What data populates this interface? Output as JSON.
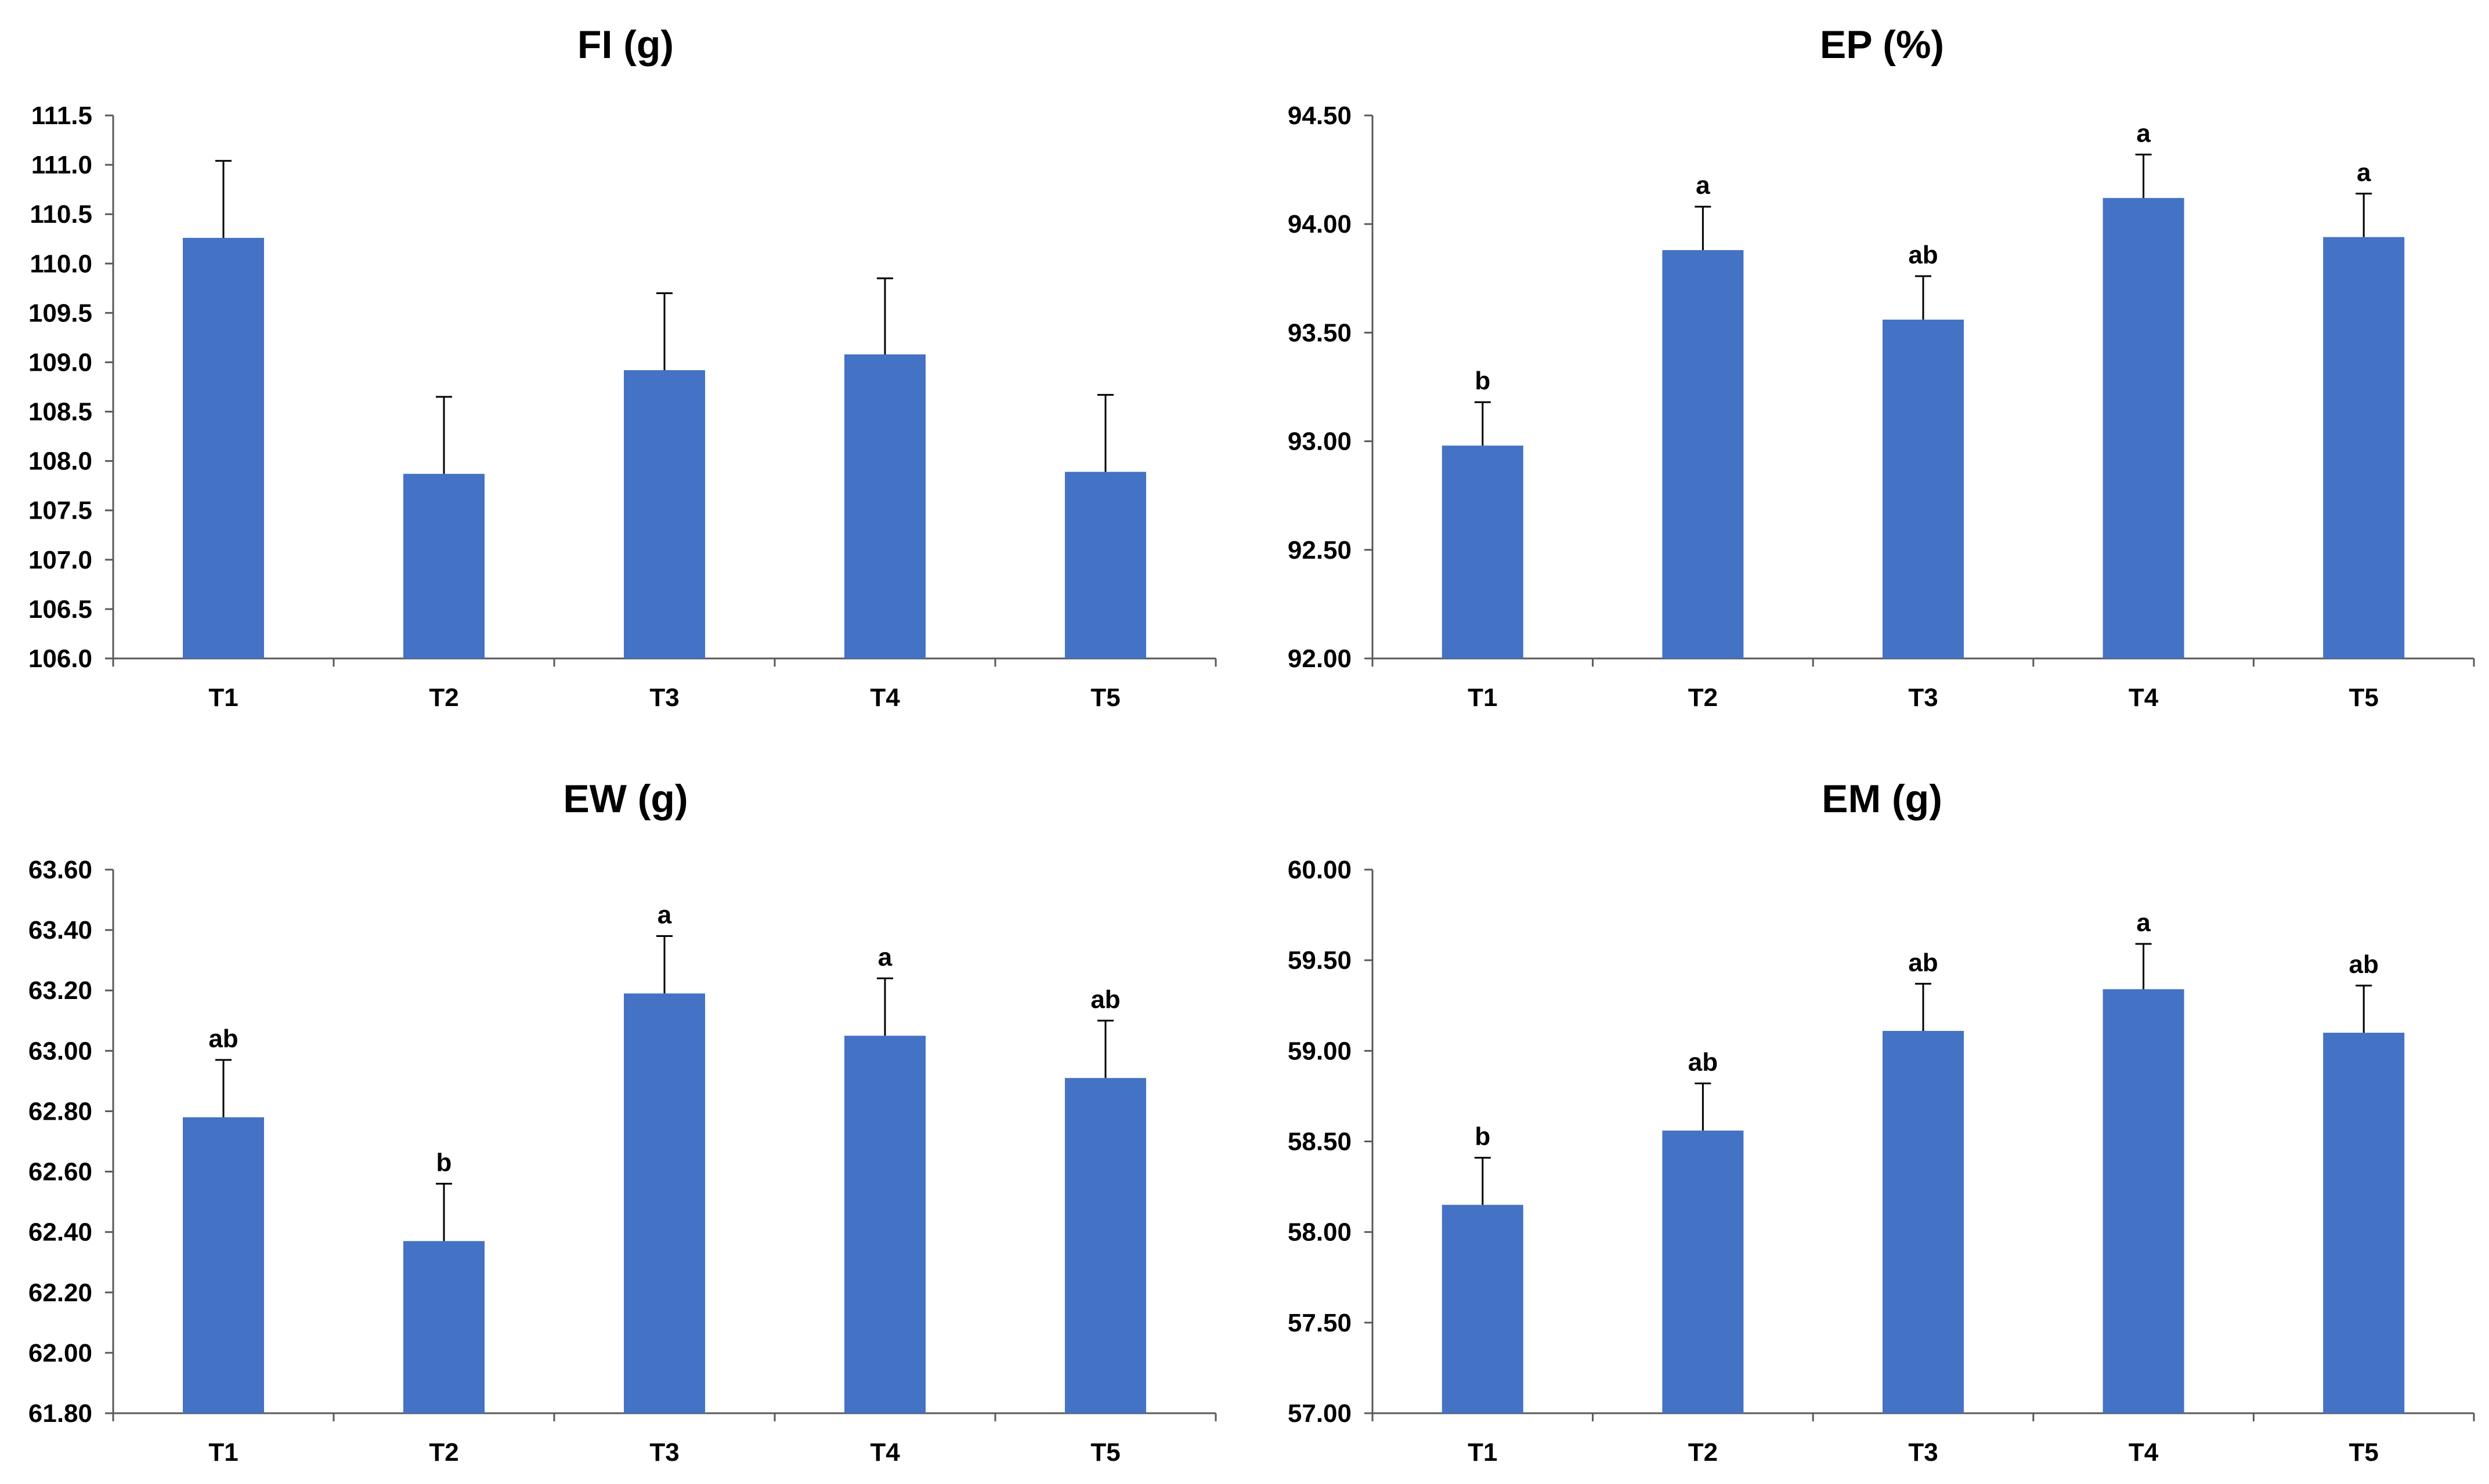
{
  "colors": {
    "bar": "#4472C4",
    "axis": "#595959",
    "error_bar": "#000000",
    "text": "#000000"
  },
  "chart_data": [
    {
      "type": "bar",
      "title": "FI (g)",
      "xlabel": "",
      "ylabel": "",
      "categories": [
        "T1",
        "T2",
        "T3",
        "T4",
        "T5"
      ],
      "values": [
        110.26,
        107.87,
        108.92,
        109.08,
        107.89
      ],
      "error": [
        0.78,
        0.78,
        0.78,
        0.77,
        0.78
      ],
      "letters": [
        "",
        "",
        "",
        "",
        ""
      ],
      "ylim": [
        106.0,
        111.5
      ],
      "yticks": [
        "106.0",
        "106.5",
        "107.0",
        "107.5",
        "108.0",
        "108.5",
        "109.0",
        "109.5",
        "110.0",
        "110.5",
        "111.0",
        "111.5"
      ],
      "grid": false
    },
    {
      "type": "bar",
      "title": "EP (%)",
      "xlabel": "",
      "ylabel": "",
      "categories": [
        "T1",
        "T2",
        "T3",
        "T4",
        "T5"
      ],
      "values": [
        92.98,
        93.88,
        93.56,
        94.12,
        93.94
      ],
      "error": [
        0.2,
        0.2,
        0.2,
        0.2,
        0.2
      ],
      "letters": [
        "b",
        "a",
        "ab",
        "a",
        "a"
      ],
      "ylim": [
        92.0,
        94.5
      ],
      "yticks": [
        "92.00",
        "92.50",
        "93.00",
        "93.50",
        "94.00",
        "94.50"
      ],
      "grid": false
    },
    {
      "type": "bar",
      "title": "EW (g)",
      "xlabel": "",
      "ylabel": "",
      "categories": [
        "T1",
        "T2",
        "T3",
        "T4",
        "T5"
      ],
      "values": [
        62.78,
        62.37,
        63.19,
        63.05,
        62.91
      ],
      "error": [
        0.19,
        0.19,
        0.19,
        0.19,
        0.19
      ],
      "letters": [
        "ab",
        "b",
        "a",
        "a",
        "ab"
      ],
      "ylim": [
        61.8,
        63.6
      ],
      "yticks": [
        "61.80",
        "62.00",
        "62.20",
        "62.40",
        "62.60",
        "62.80",
        "63.00",
        "63.20",
        "63.40",
        "63.60"
      ],
      "grid": false
    },
    {
      "type": "bar",
      "title": "EM (g)",
      "xlabel": "",
      "ylabel": "",
      "categories": [
        "T1",
        "T2",
        "T3",
        "T4",
        "T5"
      ],
      "values": [
        58.15,
        58.56,
        59.11,
        59.34,
        59.1
      ],
      "error": [
        0.26,
        0.26,
        0.26,
        0.25,
        0.26
      ],
      "letters": [
        "b",
        "ab",
        "ab",
        "a",
        "ab"
      ],
      "ylim": [
        57.0,
        60.0
      ],
      "yticks": [
        "57.00",
        "57.50",
        "58.00",
        "58.50",
        "59.00",
        "59.50",
        "60.00"
      ],
      "grid": false
    }
  ]
}
